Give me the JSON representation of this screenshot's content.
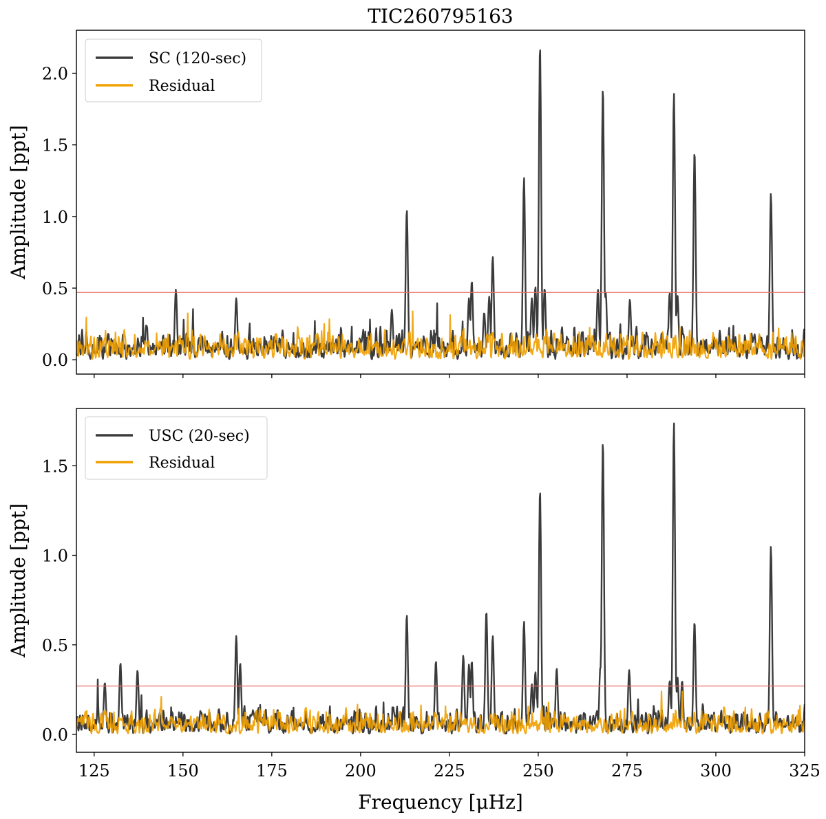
{
  "figure": {
    "title": "TIC260795163",
    "xlabel": "Frequency [μHz]"
  },
  "colors": {
    "main": "#3b3b3b",
    "residual": "#f0a000",
    "threshold": "#e8706a",
    "axis": "#000000"
  },
  "chart_data": [
    {
      "type": "line",
      "ylabel": "Amplitude [ppt]",
      "xlim": [
        120,
        325
      ],
      "ylim": [
        -0.1,
        2.3
      ],
      "xticks": [
        125,
        150,
        175,
        200,
        225,
        250,
        275,
        300,
        325
      ],
      "yticks": [
        0.0,
        0.5,
        1.0,
        1.5,
        2.0
      ],
      "show_xtick_labels": false,
      "legend_location": "top-left",
      "legend": [
        "SC (120-sec)",
        "Residual"
      ],
      "threshold": 0.47,
      "noise_level": 0.1,
      "series": [
        {
          "name": "SC (120-sec)",
          "role": "data"
        },
        {
          "name": "Residual",
          "role": "residual"
        }
      ],
      "peaks": [
        {
          "x": 148.0,
          "y": 0.49
        },
        {
          "x": 165.0,
          "y": 0.43
        },
        {
          "x": 208.8,
          "y": 0.35
        },
        {
          "x": 213.0,
          "y": 1.05
        },
        {
          "x": 230.5,
          "y": 0.43
        },
        {
          "x": 231.3,
          "y": 0.55
        },
        {
          "x": 234.8,
          "y": 0.33
        },
        {
          "x": 236.2,
          "y": 0.44
        },
        {
          "x": 237.2,
          "y": 0.72
        },
        {
          "x": 246.0,
          "y": 1.27
        },
        {
          "x": 248.2,
          "y": 0.43
        },
        {
          "x": 249.2,
          "y": 0.51
        },
        {
          "x": 250.5,
          "y": 2.2
        },
        {
          "x": 251.8,
          "y": 0.5
        },
        {
          "x": 266.8,
          "y": 0.49
        },
        {
          "x": 268.2,
          "y": 1.9
        },
        {
          "x": 269.0,
          "y": 0.47
        },
        {
          "x": 275.8,
          "y": 0.42
        },
        {
          "x": 287.0,
          "y": 0.47
        },
        {
          "x": 288.2,
          "y": 1.86
        },
        {
          "x": 289.2,
          "y": 0.45
        },
        {
          "x": 294.0,
          "y": 1.46
        },
        {
          "x": 315.5,
          "y": 1.16
        }
      ]
    },
    {
      "type": "line",
      "ylabel": "Amplitude [ppt]",
      "xlim": [
        120,
        325
      ],
      "ylim": [
        -0.1,
        1.82
      ],
      "xticks": [
        125,
        150,
        175,
        200,
        225,
        250,
        275,
        300,
        325
      ],
      "yticks": [
        0.0,
        0.5,
        1.0,
        1.5
      ],
      "show_xtick_labels": true,
      "legend_location": "top-left",
      "legend": [
        "USC (20-sec)",
        "Residual"
      ],
      "threshold": 0.27,
      "noise_level": 0.07,
      "series": [
        {
          "name": "USC (20-sec)",
          "role": "data"
        },
        {
          "name": "Residual",
          "role": "residual"
        }
      ],
      "peaks": [
        {
          "x": 128.0,
          "y": 0.29
        },
        {
          "x": 132.4,
          "y": 0.4
        },
        {
          "x": 137.2,
          "y": 0.36
        },
        {
          "x": 165.0,
          "y": 0.55
        },
        {
          "x": 166.1,
          "y": 0.4
        },
        {
          "x": 213.0,
          "y": 0.67
        },
        {
          "x": 221.2,
          "y": 0.41
        },
        {
          "x": 228.9,
          "y": 0.44
        },
        {
          "x": 230.5,
          "y": 0.39
        },
        {
          "x": 231.3,
          "y": 0.41
        },
        {
          "x": 235.4,
          "y": 0.69
        },
        {
          "x": 237.2,
          "y": 0.55
        },
        {
          "x": 246.0,
          "y": 0.63
        },
        {
          "x": 248.2,
          "y": 0.28
        },
        {
          "x": 249.2,
          "y": 0.35
        },
        {
          "x": 250.5,
          "y": 1.37
        },
        {
          "x": 255.2,
          "y": 0.37
        },
        {
          "x": 267.5,
          "y": 0.38
        },
        {
          "x": 268.2,
          "y": 1.64
        },
        {
          "x": 275.6,
          "y": 0.36
        },
        {
          "x": 287.0,
          "y": 0.3
        },
        {
          "x": 288.2,
          "y": 1.74
        },
        {
          "x": 289.2,
          "y": 0.32
        },
        {
          "x": 290.5,
          "y": 0.3
        },
        {
          "x": 294.0,
          "y": 0.63
        },
        {
          "x": 315.5,
          "y": 1.05
        }
      ]
    }
  ]
}
